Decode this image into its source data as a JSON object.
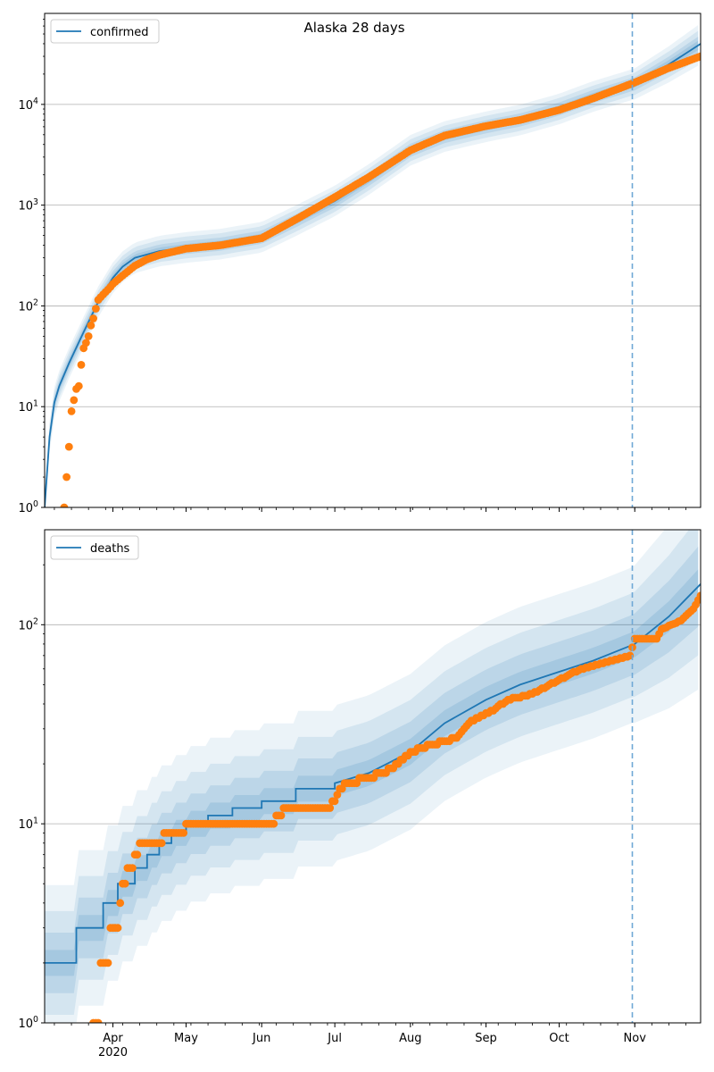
{
  "figure": {
    "title": "Alaska 28 days"
  },
  "colors": {
    "model_line": "#1f77b4",
    "observed": "#ff7f0e",
    "band": "#1f77b4",
    "grid": "#b0b0b0",
    "forecast_line": "#6fa8d6"
  },
  "x_axis": {
    "tick_labels": [
      "Apr",
      "May",
      "Jun",
      "Jul",
      "Aug",
      "Sep",
      "Oct",
      "Nov"
    ],
    "tick_dates": [
      "2020-04-01",
      "2020-05-01",
      "2020-06-01",
      "2020-07-01",
      "2020-08-01",
      "2020-09-01",
      "2020-10-01",
      "2020-11-01"
    ],
    "year_label": "2020",
    "range": [
      "2020-03-04",
      "2020-11-28"
    ],
    "forecast_start": "2020-10-31"
  },
  "chart_data": [
    {
      "type": "line",
      "legend": "confirmed",
      "legend_position": "top-left",
      "yscale": "log",
      "ylim": [
        1,
        80000
      ],
      "y_tick_labels": [
        "10^0",
        "10^1",
        "10^2",
        "10^3",
        "10^4"
      ],
      "y_ticks": [
        1,
        10,
        100,
        1000,
        10000
      ],
      "grid": "horizontal",
      "model": {
        "x": [
          "2020-03-04",
          "2020-03-06",
          "2020-03-08",
          "2020-03-10",
          "2020-03-14",
          "2020-03-20",
          "2020-03-26",
          "2020-04-01",
          "2020-04-05",
          "2020-04-10",
          "2020-04-20",
          "2020-05-01",
          "2020-05-15",
          "2020-06-01",
          "2020-06-15",
          "2020-07-01",
          "2020-07-15",
          "2020-08-01",
          "2020-08-15",
          "2020-09-01",
          "2020-09-15",
          "2020-10-01",
          "2020-10-15",
          "2020-11-01",
          "2020-11-15",
          "2020-11-28"
        ],
        "y": [
          1,
          5,
          11,
          16,
          27,
          55,
          110,
          190,
          245,
          300,
          350,
          380,
          410,
          480,
          700,
          1100,
          1800,
          3500,
          4800,
          6000,
          7000,
          9000,
          12000,
          16000,
          25000,
          40000
        ]
      },
      "observed": {
        "x": [
          "2020-03-12",
          "2020-03-14",
          "2020-03-15",
          "2020-03-17",
          "2020-03-18",
          "2020-03-19",
          "2020-03-20",
          "2020-03-21",
          "2020-03-22",
          "2020-03-23",
          "2020-03-24",
          "2020-03-25",
          "2020-03-26",
          "2020-03-28",
          "2020-03-30",
          "2020-04-01",
          "2020-04-05",
          "2020-04-10",
          "2020-04-15",
          "2020-04-20",
          "2020-05-01",
          "2020-05-15",
          "2020-06-01",
          "2020-06-15",
          "2020-07-01",
          "2020-07-15",
          "2020-08-01",
          "2020-08-15",
          "2020-09-01",
          "2020-09-15",
          "2020-10-01",
          "2020-10-15",
          "2020-11-01",
          "2020-11-15",
          "2020-11-28"
        ],
        "y": [
          1,
          4,
          9,
          15,
          16,
          26,
          38,
          43,
          50,
          64,
          75,
          94,
          115,
          130,
          145,
          165,
          200,
          250,
          290,
          320,
          370,
          400,
          470,
          720,
          1200,
          1900,
          3500,
          4900,
          6100,
          7000,
          8800,
          11500,
          16500,
          23000,
          30000
        ]
      }
    },
    {
      "type": "line",
      "legend": "deaths",
      "legend_position": "top-left",
      "yscale": "log",
      "ylim": [
        1,
        300
      ],
      "y_tick_labels": [
        "10^0",
        "10^1",
        "10^2"
      ],
      "y_ticks": [
        1,
        10,
        100
      ],
      "grid": "horizontal",
      "model": {
        "x": [
          "2020-03-04",
          "2020-03-17",
          "2020-03-17",
          "2020-03-28",
          "2020-03-28",
          "2020-04-03",
          "2020-04-03",
          "2020-04-10",
          "2020-04-10",
          "2020-04-15",
          "2020-04-15",
          "2020-04-20",
          "2020-04-20",
          "2020-04-25",
          "2020-04-25",
          "2020-05-01",
          "2020-05-01",
          "2020-05-10",
          "2020-05-10",
          "2020-05-20",
          "2020-05-20",
          "2020-06-01",
          "2020-06-01",
          "2020-06-15",
          "2020-06-15",
          "2020-07-01",
          "2020-07-01",
          "2020-07-15",
          "2020-08-01",
          "2020-08-15",
          "2020-09-01",
          "2020-09-15",
          "2020-10-01",
          "2020-10-15",
          "2020-11-01",
          "2020-11-15",
          "2020-11-28"
        ],
        "y": [
          2,
          2,
          3,
          3,
          4,
          4,
          5,
          5,
          6,
          6,
          7,
          7,
          8,
          8,
          9,
          9,
          10,
          10,
          11,
          11,
          12,
          12,
          13,
          13,
          15,
          15,
          16,
          18,
          23,
          32,
          42,
          50,
          58,
          66,
          80,
          110,
          160
        ]
      },
      "observed": {
        "x": [
          "2020-03-24",
          "2020-03-26",
          "2020-03-27",
          "2020-03-29",
          "2020-03-31",
          "2020-04-03",
          "2020-04-05",
          "2020-04-08",
          "2020-04-10",
          "2020-04-13",
          "2020-04-30",
          "2020-05-01",
          "2020-06-05",
          "2020-06-08",
          "2020-06-10",
          "2020-06-28",
          "2020-07-02",
          "2020-07-05",
          "2020-07-15",
          "2020-07-25",
          "2020-08-01",
          "2020-08-10",
          "2020-08-20",
          "2020-08-25",
          "2020-09-05",
          "2020-09-10",
          "2020-09-20",
          "2020-10-01",
          "2020-10-10",
          "2020-10-20",
          "2020-10-30",
          "2020-11-01",
          "2020-11-10",
          "2020-11-12",
          "2020-11-20",
          "2020-11-25",
          "2020-11-28"
        ],
        "y": [
          1,
          1,
          2,
          2,
          3,
          3,
          5,
          6,
          7,
          8,
          9,
          10,
          10,
          11,
          12,
          12,
          14,
          16,
          17,
          19,
          23,
          25,
          27,
          32,
          38,
          42,
          45,
          53,
          60,
          65,
          70,
          85,
          85,
          95,
          105,
          120,
          140
        ]
      }
    }
  ]
}
